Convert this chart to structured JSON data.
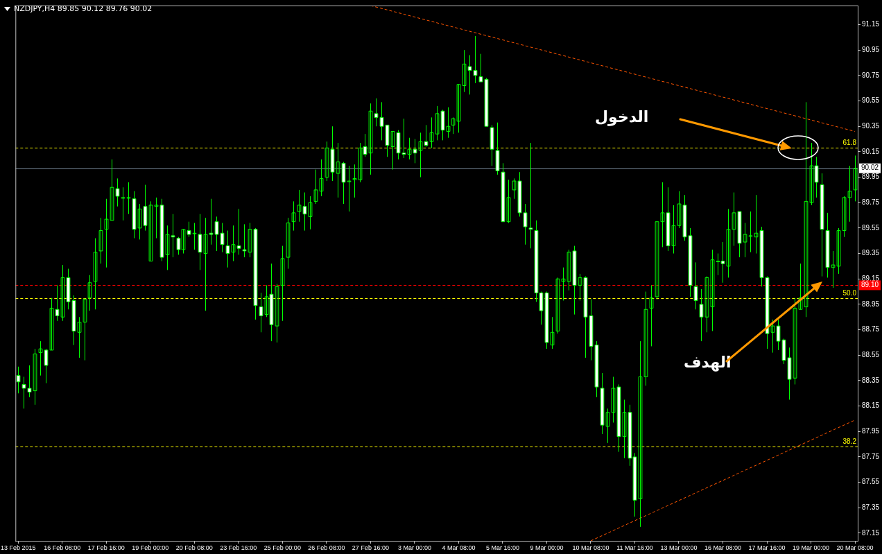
{
  "chart_data": {
    "type": "candlestick",
    "title": "NZDJPY,H4 89.85 90.12 89.76 90.02",
    "color": "#00ff00",
    "categories": [
      "13 Feb 2015",
      null,
      null,
      null,
      null,
      null,
      null,
      null,
      "16 Feb 08:00",
      null,
      null,
      null,
      null,
      null,
      null,
      null,
      "17 Feb 16:00",
      null,
      null,
      null,
      null,
      null,
      null,
      null,
      "19 Feb 00:00",
      null,
      null,
      null,
      null,
      null,
      null,
      null,
      "20 Feb 08:00",
      null,
      null,
      null,
      null,
      null,
      null,
      null,
      "23 Feb 16:00",
      null,
      null,
      null,
      null,
      null,
      null,
      null,
      "25 Feb 00:00",
      null,
      null,
      null,
      null,
      null,
      null,
      null,
      "26 Feb 08:00",
      null,
      null,
      null,
      null,
      null,
      null,
      null,
      "27 Feb 16:00",
      null,
      null,
      null,
      null,
      null,
      null,
      null,
      "3 Mar 00:00",
      null,
      null,
      null,
      null,
      null,
      null,
      null,
      "4 Mar 08:00",
      null,
      null,
      null,
      null,
      null,
      null,
      null,
      "5 Mar 16:00",
      null,
      null,
      null,
      null,
      null,
      null,
      null,
      "9 Mar 00:00",
      null,
      null,
      null,
      null,
      null,
      null,
      null,
      "10 Mar 08:00",
      null,
      null,
      null,
      null,
      null,
      null,
      null,
      "11 Mar 16:00",
      null,
      null,
      null,
      null,
      null,
      null,
      null,
      "13 Mar 00:00",
      null,
      null,
      null,
      null,
      null,
      null,
      null,
      "16 Mar 08:00",
      null,
      null,
      null,
      null,
      null,
      null,
      null,
      "17 Mar 16:00",
      null,
      null,
      null,
      null,
      null,
      null,
      null,
      "19 Mar 00:00",
      null,
      null,
      null,
      null,
      null,
      null,
      null,
      "20 Mar 08:00"
    ],
    "ohlc": [
      [
        88.39,
        88.46,
        88.25,
        88.34
      ],
      [
        88.32,
        88.38,
        88.13,
        88.29
      ],
      [
        88.29,
        88.47,
        88.22,
        88.26
      ],
      [
        88.27,
        88.6,
        88.16,
        88.56
      ],
      [
        88.57,
        88.66,
        88.39,
        88.6
      ],
      [
        88.59,
        88.6,
        88.33,
        88.47
      ],
      [
        88.59,
        89.0,
        88.59,
        88.92
      ],
      [
        88.91,
        89.1,
        88.82,
        88.86
      ],
      [
        88.85,
        89.26,
        88.82,
        89.16
      ],
      [
        89.16,
        89.23,
        88.91,
        88.97
      ],
      [
        88.98,
        89.02,
        88.63,
        88.74
      ],
      [
        88.73,
        88.85,
        88.53,
        88.81
      ],
      [
        88.81,
        89.0,
        88.51,
        88.99
      ],
      [
        89.0,
        89.18,
        88.9,
        89.12
      ],
      [
        89.13,
        89.47,
        88.91,
        89.36
      ],
      [
        89.37,
        89.63,
        89.27,
        89.53
      ],
      [
        89.54,
        89.78,
        89.24,
        89.62
      ],
      [
        89.61,
        90.09,
        89.61,
        89.87
      ],
      [
        89.86,
        89.94,
        89.72,
        89.8
      ],
      [
        89.79,
        89.87,
        89.61,
        89.79
      ],
      [
        89.79,
        89.91,
        89.66,
        89.79
      ],
      [
        89.78,
        89.84,
        89.47,
        89.54
      ],
      [
        89.55,
        89.74,
        89.46,
        89.7
      ],
      [
        89.72,
        89.89,
        89.53,
        89.57
      ],
      [
        89.29,
        89.76,
        89.29,
        89.73
      ],
      [
        89.72,
        89.79,
        89.47,
        89.73
      ],
      [
        89.73,
        89.78,
        89.29,
        89.32
      ],
      [
        89.34,
        89.57,
        89.22,
        89.5
      ],
      [
        89.49,
        89.66,
        89.32,
        89.48
      ],
      [
        89.47,
        89.48,
        89.34,
        89.38
      ],
      [
        89.38,
        89.54,
        89.35,
        89.54
      ],
      [
        89.53,
        89.6,
        89.48,
        89.5
      ],
      [
        89.51,
        89.59,
        89.38,
        89.51
      ],
      [
        89.5,
        89.66,
        89.22,
        89.36
      ],
      [
        89.35,
        89.63,
        88.9,
        89.5
      ],
      [
        89.51,
        89.78,
        89.42,
        89.5
      ],
      [
        89.6,
        89.64,
        89.37,
        89.5
      ],
      [
        89.51,
        89.59,
        89.36,
        89.42
      ],
      [
        89.41,
        89.53,
        89.24,
        89.35
      ],
      [
        89.36,
        89.57,
        89.29,
        89.42
      ],
      [
        89.41,
        89.7,
        89.34,
        89.39
      ],
      [
        89.38,
        89.58,
        89.32,
        89.37
      ],
      [
        89.36,
        89.59,
        89.32,
        89.54
      ],
      [
        89.54,
        89.55,
        88.83,
        88.94
      ],
      [
        88.93,
        89.04,
        88.73,
        88.86
      ],
      [
        88.87,
        89.1,
        88.85,
        89.01
      ],
      [
        89.03,
        89.27,
        88.66,
        88.79
      ],
      [
        88.78,
        89.11,
        88.65,
        89.09
      ],
      [
        89.1,
        89.41,
        88.82,
        89.31
      ],
      [
        89.32,
        89.63,
        89.23,
        89.59
      ],
      [
        89.6,
        89.76,
        89.53,
        89.67
      ],
      [
        89.68,
        89.85,
        89.6,
        89.73
      ],
      [
        89.72,
        89.83,
        89.53,
        89.66
      ],
      [
        89.64,
        89.8,
        89.54,
        89.75
      ],
      [
        89.76,
        90.01,
        89.74,
        89.85
      ],
      [
        89.84,
        90.09,
        89.8,
        89.94
      ],
      [
        89.95,
        90.23,
        89.92,
        90.18
      ],
      [
        90.17,
        90.35,
        89.92,
        89.99
      ],
      [
        89.98,
        90.22,
        89.79,
        90.07
      ],
      [
        90.06,
        90.07,
        89.74,
        89.91
      ],
      [
        89.92,
        90.04,
        89.68,
        89.92
      ],
      [
        89.93,
        90.05,
        89.79,
        89.94
      ],
      [
        89.93,
        90.22,
        89.91,
        90.18
      ],
      [
        90.19,
        90.29,
        90.11,
        90.13
      ],
      [
        90.14,
        90.53,
        89.97,
        90.47
      ],
      [
        90.45,
        90.57,
        90.35,
        90.42
      ],
      [
        90.42,
        90.54,
        90.24,
        90.35
      ],
      [
        90.36,
        90.36,
        90.11,
        90.2
      ],
      [
        90.19,
        90.31,
        90.01,
        90.31
      ],
      [
        90.3,
        90.32,
        90.09,
        90.14
      ],
      [
        90.14,
        90.41,
        90.1,
        90.13
      ],
      [
        90.13,
        90.26,
        90.09,
        90.17
      ],
      [
        90.17,
        90.25,
        90.06,
        90.14
      ],
      [
        90.16,
        90.3,
        89.95,
        90.23
      ],
      [
        90.23,
        90.36,
        90.19,
        90.2
      ],
      [
        90.23,
        90.42,
        90.18,
        90.3
      ],
      [
        90.29,
        90.51,
        90.24,
        90.45
      ],
      [
        90.47,
        90.48,
        90.24,
        90.32
      ],
      [
        90.31,
        90.5,
        90.26,
        90.35
      ],
      [
        90.36,
        90.42,
        90.29,
        90.41
      ],
      [
        90.39,
        90.68,
        90.3,
        90.68
      ],
      [
        90.67,
        90.95,
        90.62,
        90.84
      ],
      [
        90.82,
        90.91,
        90.6,
        90.79
      ],
      [
        90.79,
        91.06,
        90.69,
        90.75
      ],
      [
        90.74,
        90.92,
        90.7,
        90.7
      ],
      [
        90.72,
        90.73,
        90.35,
        90.35
      ],
      [
        90.34,
        90.36,
        90.04,
        90.17
      ],
      [
        90.16,
        90.38,
        89.97,
        90.0
      ],
      [
        89.99,
        90.06,
        89.6,
        89.6
      ],
      [
        89.6,
        89.93,
        89.59,
        89.79
      ],
      [
        89.85,
        89.94,
        89.78,
        89.92
      ],
      [
        89.92,
        89.99,
        89.64,
        89.67
      ],
      [
        89.67,
        89.74,
        89.42,
        89.56
      ],
      [
        89.55,
        90.22,
        89.39,
        89.54
      ],
      [
        89.53,
        89.61,
        88.97,
        89.04
      ],
      [
        89.04,
        89.05,
        88.79,
        88.9
      ],
      [
        89.04,
        89.05,
        88.6,
        88.65
      ],
      [
        88.63,
        88.85,
        88.6,
        88.73
      ],
      [
        88.74,
        89.16,
        88.72,
        89.15
      ],
      [
        89.13,
        89.24,
        88.98,
        89.15
      ],
      [
        89.13,
        89.38,
        89.06,
        89.36
      ],
      [
        89.37,
        89.41,
        88.87,
        89.1
      ],
      [
        89.1,
        89.19,
        88.98,
        89.16
      ],
      [
        89.16,
        89.17,
        88.53,
        88.85
      ],
      [
        88.86,
        88.99,
        88.51,
        88.62
      ],
      [
        88.63,
        88.66,
        88.22,
        88.3
      ],
      [
        88.29,
        88.41,
        87.93,
        88.0
      ],
      [
        87.99,
        88.13,
        87.86,
        88.1
      ],
      [
        88.1,
        88.38,
        88.02,
        88.29
      ],
      [
        88.3,
        88.32,
        87.79,
        87.91
      ],
      [
        87.91,
        88.2,
        87.74,
        88.1
      ],
      [
        88.1,
        88.16,
        87.68,
        87.74
      ],
      [
        87.75,
        87.78,
        87.28,
        87.41
      ],
      [
        87.42,
        88.66,
        87.2,
        88.38
      ],
      [
        88.38,
        89.05,
        88.31,
        88.91
      ],
      [
        88.92,
        89.1,
        88.62,
        89.0
      ],
      [
        89.01,
        89.6,
        88.99,
        89.6
      ],
      [
        89.6,
        89.91,
        89.4,
        89.67
      ],
      [
        89.67,
        89.87,
        89.37,
        89.41
      ],
      [
        89.41,
        89.73,
        89.35,
        89.57
      ],
      [
        89.57,
        89.84,
        89.55,
        89.74
      ],
      [
        89.73,
        89.81,
        89.45,
        89.48
      ],
      [
        89.49,
        89.55,
        89.01,
        89.1
      ],
      [
        89.09,
        89.28,
        88.91,
        88.98
      ],
      [
        88.95,
        89.07,
        88.66,
        88.85
      ],
      [
        88.85,
        89.17,
        88.73,
        89.16
      ],
      [
        88.93,
        89.38,
        88.74,
        89.3
      ],
      [
        89.29,
        89.35,
        89.18,
        89.29
      ],
      [
        89.29,
        89.44,
        89.12,
        89.27
      ],
      [
        89.25,
        89.7,
        89.16,
        89.54
      ],
      [
        89.54,
        89.83,
        89.41,
        89.67
      ],
      [
        89.68,
        89.68,
        89.32,
        89.43
      ],
      [
        89.44,
        89.59,
        89.32,
        89.5
      ],
      [
        89.49,
        89.68,
        89.36,
        89.49
      ],
      [
        89.48,
        89.81,
        89.35,
        89.51
      ],
      [
        89.53,
        89.56,
        89.09,
        89.16
      ],
      [
        89.16,
        89.17,
        88.6,
        88.72
      ],
      [
        88.73,
        88.83,
        88.57,
        88.78
      ],
      [
        88.78,
        88.83,
        88.59,
        88.66
      ],
      [
        88.67,
        88.68,
        88.48,
        88.51
      ],
      [
        88.53,
        88.61,
        88.2,
        88.36
      ],
      [
        88.37,
        89.0,
        88.32,
        88.92
      ],
      [
        88.91,
        89.27,
        88.91,
        89.0
      ],
      [
        88.93,
        90.54,
        88.85,
        89.76
      ],
      [
        89.75,
        90.22,
        89.73,
        90.04
      ],
      [
        90.04,
        90.11,
        89.79,
        89.91
      ],
      [
        89.89,
        89.98,
        89.17,
        89.54
      ],
      [
        89.53,
        89.67,
        89.16,
        89.24
      ],
      [
        89.24,
        89.37,
        89.08,
        89.26
      ],
      [
        89.25,
        89.55,
        89.19,
        89.53
      ],
      [
        89.53,
        89.8,
        89.48,
        89.79
      ],
      [
        89.79,
        90.04,
        89.6,
        89.84
      ],
      [
        89.85,
        90.12,
        89.76,
        90.02
      ]
    ],
    "colors": [
      "#ffffff",
      "#ffffff",
      "#ffffff",
      "#00ff00",
      "#00ff00",
      "#ffffff",
      "#00ff00",
      "#ffffff",
      "#00ff00",
      "#ffffff",
      "#ffffff",
      "#00ff00",
      "#00ff00",
      "#00ff00",
      "#00ff00",
      "#00ff00",
      "#00ff00",
      "#00ff00",
      "#ffffff",
      "#00ff00",
      "#00ff00",
      "#ffffff",
      "#00ff00",
      "#ffffff",
      "#00ff00",
      "#00ff00",
      "#ffffff",
      "#00ff00",
      "#ffffff",
      "#ffffff",
      "#00ff00",
      "#ffffff",
      "#00ff00",
      "#ffffff",
      "#00ff00",
      "#ffffff",
      "#ffffff",
      "#ffffff",
      "#ffffff",
      "#00ff00",
      "#ffffff",
      "#ffffff",
      "#00ff00",
      "#ffffff",
      "#ffffff",
      "#00ff00",
      "#ffffff",
      "#00ff00",
      "#00ff00",
      "#00ff00",
      "#00ff00",
      "#00ff00",
      "#ffffff",
      "#00ff00",
      "#00ff00",
      "#00ff00",
      "#00ff00",
      "#ffffff",
      "#00ff00",
      "#ffffff",
      "#00ff00",
      "#00ff00",
      "#00ff00",
      "#ffffff",
      "#00ff00",
      "#ffffff",
      "#ffffff",
      "#ffffff",
      "#00ff00",
      "#ffffff",
      "#ffffff",
      "#00ff00",
      "#ffffff",
      "#00ff00",
      "#ffffff",
      "#00ff00",
      "#00ff00",
      "#ffffff",
      "#00ff00",
      "#00ff00",
      "#00ff00",
      "#00ff00",
      "#ffffff",
      "#ffffff",
      "#ffffff",
      "#ffffff",
      "#ffffff",
      "#ffffff",
      "#ffffff",
      "#00ff00",
      "#00ff00",
      "#ffffff",
      "#ffffff",
      "#ffffff",
      "#ffffff",
      "#ffffff",
      "#ffffff",
      "#00ff00",
      "#00ff00",
      "#00ff00",
      "#00ff00",
      "#ffffff",
      "#00ff00",
      "#ffffff",
      "#ffffff",
      "#ffffff",
      "#ffffff",
      "#00ff00",
      "#00ff00",
      "#ffffff",
      "#00ff00",
      "#ffffff",
      "#ffffff",
      "#00ff00",
      "#00ff00",
      "#00ff00",
      "#00ff00",
      "#00ff00",
      "#ffffff",
      "#00ff00",
      "#00ff00",
      "#ffffff",
      "#ffffff",
      "#ffffff",
      "#ffffff",
      "#00ff00",
      "#00ff00",
      "#00ff00",
      "#ffffff",
      "#00ff00",
      "#00ff00",
      "#ffffff",
      "#00ff00",
      "#00ff00",
      "#00ff00",
      "#ffffff",
      "#ffffff",
      "#00ff00",
      "#ffffff",
      "#ffffff",
      "#ffffff",
      "#00ff00",
      "#00ff00",
      "#00ff00",
      "#00ff00",
      "#ffffff",
      "#ffffff",
      "#ffffff",
      "#00ff00",
      "#00ff00",
      "#00ff00",
      "#00ff00",
      "#00ff00"
    ],
    "series": [
      {
        "type": "line",
        "color": "#ff5500",
        "line_style": "dashed",
        "x": [
          "27 Feb 16:00",
          "20 Mar 08:00"
        ],
        "values": [
          91.3,
          90.31
        ]
      },
      {
        "type": "line",
        "color": "#ff5500",
        "line_style": "dashed",
        "x": [
          "10 Mar 08:00",
          "20 Mar 08:00"
        ],
        "values": [
          87.09,
          88.04
        ]
      }
    ],
    "ylim": [
      87.09,
      91.3
    ],
    "yticks": [
      87.15,
      87.35,
      87.55,
      87.75,
      87.95,
      88.15,
      88.35,
      88.55,
      88.75,
      88.95,
      89.15,
      89.35,
      89.55,
      89.75,
      89.95,
      90.15,
      90.35,
      90.55,
      90.75,
      90.95,
      91.15
    ],
    "ref_lines": [
      {
        "axis": "y",
        "value": 90.18,
        "color": "#ffff00",
        "line_style": "dashed"
      },
      {
        "axis": "y",
        "value": 89.0,
        "color": "#ffff00",
        "line_style": "dashed"
      },
      {
        "axis": "y",
        "value": 87.83,
        "color": "#ffff00",
        "line_style": "dashed"
      },
      {
        "axis": "y",
        "value": 90.02,
        "label": "90.02",
        "color": "#778899",
        "line_style": "solid"
      },
      {
        "axis": "y",
        "value": 89.1,
        "label": "89.10",
        "color": "#ff0000",
        "line_style": "dashed"
      }
    ],
    "annotations": [
      "الدخول",
      "الهدف",
      {
        "text": "61.8",
        "y": 90.18
      },
      {
        "text": "50.0",
        "y": 89.0
      },
      {
        "text": "38.2",
        "y": 87.83
      }
    ],
    "grid": false,
    "legend": false,
    "marker": "none"
  }
}
